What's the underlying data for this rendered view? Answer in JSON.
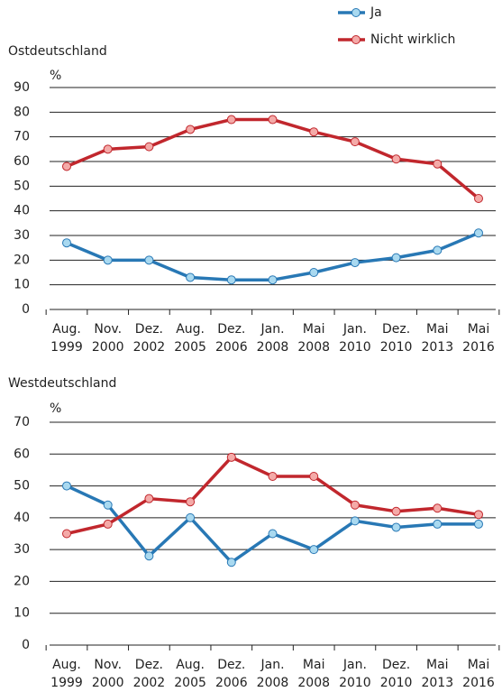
{
  "chart_data": [
    {
      "type": "line",
      "title": "Ostdeutschland",
      "y_label": "%",
      "categories": [
        [
          "Aug.",
          "1999"
        ],
        [
          "Nov.",
          "2000"
        ],
        [
          "Dez.",
          "2002"
        ],
        [
          "Aug.",
          "2005"
        ],
        [
          "Dez.",
          "2006"
        ],
        [
          "Jan.",
          "2008"
        ],
        [
          "Mai",
          "2008"
        ],
        [
          "Jan.",
          "2010"
        ],
        [
          "Dez.",
          "2010"
        ],
        [
          "Mai",
          "2013"
        ],
        [
          "Mai",
          "2016"
        ]
      ],
      "series": [
        {
          "name": "Ja",
          "color": "#2878b5",
          "marker_color": "#a9d9f0",
          "values": [
            27,
            20,
            20,
            13,
            12,
            12,
            15,
            19,
            21,
            24,
            31
          ]
        },
        {
          "name": "Nicht wirklich",
          "color": "#c1272d",
          "marker_color": "#f4aaa8",
          "values": [
            58,
            65,
            66,
            73,
            77,
            77,
            72,
            68,
            61,
            59,
            45
          ]
        }
      ],
      "ylim": [
        0,
        90
      ],
      "yticks": [
        0,
        10,
        20,
        30,
        40,
        50,
        60,
        70,
        80,
        90
      ],
      "grid": true
    },
    {
      "type": "line",
      "title": "Westdeutschland",
      "y_label": "%",
      "categories": [
        [
          "Aug.",
          "1999"
        ],
        [
          "Nov.",
          "2000"
        ],
        [
          "Dez.",
          "2002"
        ],
        [
          "Aug.",
          "2005"
        ],
        [
          "Dez.",
          "2006"
        ],
        [
          "Jan.",
          "2008"
        ],
        [
          "Mai",
          "2008"
        ],
        [
          "Jan.",
          "2010"
        ],
        [
          "Dez.",
          "2010"
        ],
        [
          "Mai",
          "2013"
        ],
        [
          "Mai",
          "2016"
        ]
      ],
      "series": [
        {
          "name": "Ja",
          "color": "#2878b5",
          "marker_color": "#a9d9f0",
          "values": [
            50,
            44,
            28,
            40,
            26,
            35,
            30,
            39,
            37,
            38,
            38
          ]
        },
        {
          "name": "Nicht wirklich",
          "color": "#c1272d",
          "marker_color": "#f4aaa8",
          "values": [
            35,
            38,
            46,
            45,
            59,
            53,
            53,
            44,
            42,
            43,
            41
          ]
        }
      ],
      "ylim": [
        0,
        70
      ],
      "yticks": [
        0,
        10,
        20,
        30,
        40,
        50,
        60,
        70
      ],
      "grid": true
    }
  ]
}
